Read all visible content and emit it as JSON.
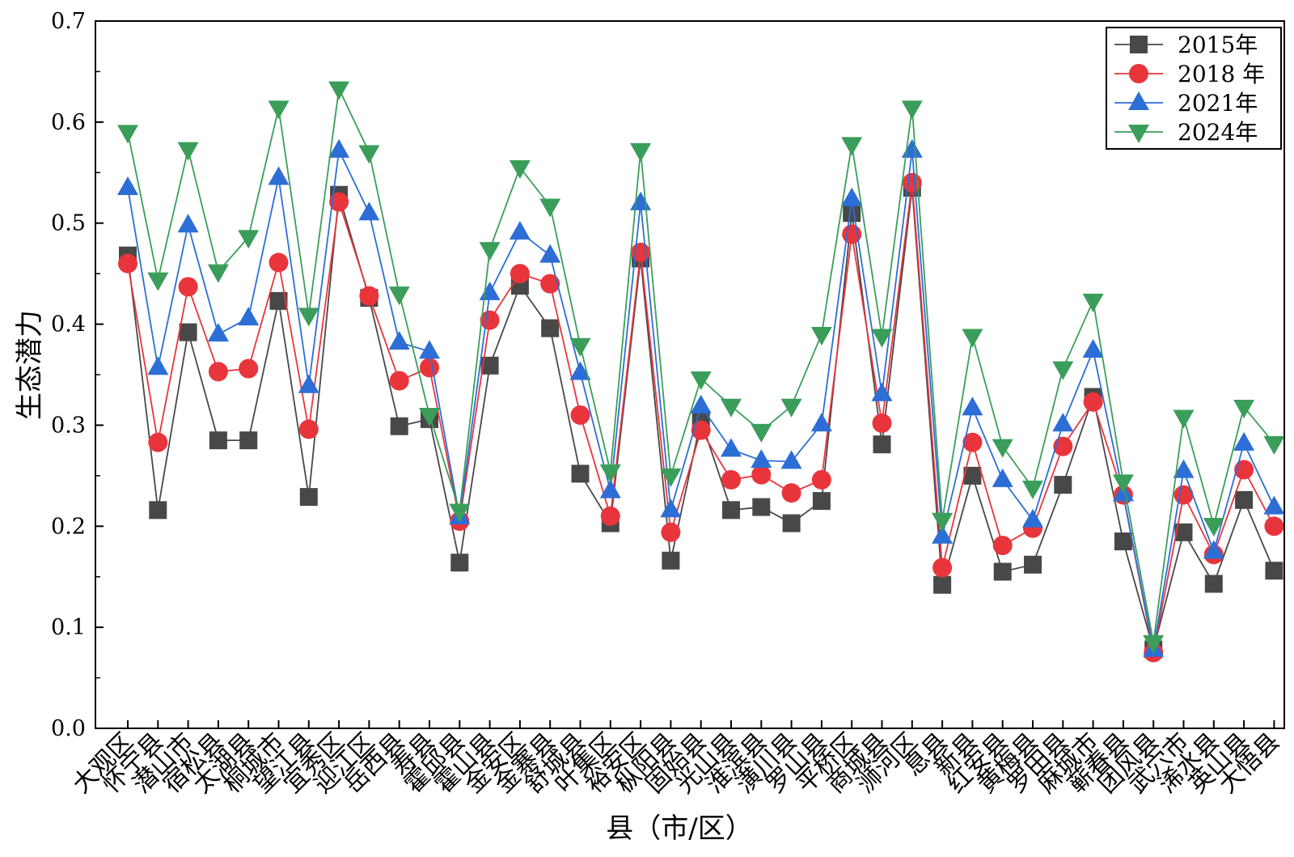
{
  "chart_data": {
    "type": "line",
    "title": "",
    "xlabel": "县（市/区）",
    "ylabel": "生态潜力",
    "ylim": [
      0,
      0.7
    ],
    "yticks": [
      "0.0",
      "0.1",
      "0.2",
      "0.3",
      "0.4",
      "0.5",
      "0.6",
      "0.7"
    ],
    "legend_position": "top-right",
    "categories": [
      "大观区",
      "怀宁县",
      "潜山市",
      "宿松县",
      "太湖县",
      "桐城市",
      "望江县",
      "宜秀区",
      "迎江区",
      "岳西县",
      "寿县",
      "霍邱县",
      "霍山县",
      "金安区",
      "金寨县",
      "舒城县",
      "叶集区",
      "裕安区",
      "枞阳县",
      "固始县",
      "光山县",
      "淮滨县",
      "潢川县",
      "罗山县",
      "平桥区",
      "商城县",
      "浉河区",
      "息县",
      "新县",
      "红安县",
      "黄梅县",
      "罗田县",
      "麻城市",
      "蕲春县",
      "团风县",
      "武穴市",
      "浠水县",
      "英山县",
      "大悟县"
    ],
    "series": [
      {
        "name": "2015年",
        "color": "#484848",
        "marker": "square",
        "values": [
          0.468,
          0.216,
          0.392,
          0.285,
          0.285,
          0.423,
          0.229,
          0.528,
          0.426,
          0.299,
          0.306,
          0.164,
          0.359,
          0.438,
          0.396,
          0.252,
          0.203,
          0.465,
          0.166,
          0.305,
          0.216,
          0.219,
          0.203,
          0.225,
          0.51,
          0.281,
          0.535,
          0.142,
          0.25,
          0.155,
          0.162,
          0.241,
          0.328,
          0.185,
          0.078,
          0.194,
          0.143,
          0.226,
          0.156
        ]
      },
      {
        "name": "2018 年",
        "color": "#e8353c",
        "marker": "circle",
        "values": [
          0.46,
          0.283,
          0.437,
          0.353,
          0.356,
          0.461,
          0.296,
          0.521,
          0.428,
          0.344,
          0.357,
          0.205,
          0.404,
          0.45,
          0.44,
          0.31,
          0.21,
          0.471,
          0.194,
          0.295,
          0.246,
          0.251,
          0.233,
          0.246,
          0.489,
          0.302,
          0.54,
          0.159,
          0.283,
          0.181,
          0.198,
          0.279,
          0.323,
          0.231,
          0.075,
          0.231,
          0.172,
          0.256,
          0.2
        ]
      },
      {
        "name": "2021年",
        "color": "#2c6ed6",
        "marker": "triangle-up",
        "values": [
          0.535,
          0.357,
          0.498,
          0.39,
          0.406,
          0.545,
          0.339,
          0.572,
          0.51,
          0.382,
          0.373,
          0.209,
          0.431,
          0.491,
          0.468,
          0.352,
          0.235,
          0.52,
          0.216,
          0.319,
          0.276,
          0.265,
          0.264,
          0.301,
          0.524,
          0.331,
          0.572,
          0.19,
          0.317,
          0.246,
          0.206,
          0.301,
          0.374,
          0.232,
          0.078,
          0.255,
          0.175,
          0.282,
          0.219
        ]
      },
      {
        "name": "2024年",
        "color": "#3a9e5a",
        "marker": "triangle-down",
        "values": [
          0.59,
          0.444,
          0.573,
          0.452,
          0.486,
          0.614,
          0.409,
          0.633,
          0.57,
          0.43,
          0.31,
          0.215,
          0.474,
          0.555,
          0.517,
          0.379,
          0.254,
          0.572,
          0.25,
          0.346,
          0.319,
          0.294,
          0.319,
          0.39,
          0.578,
          0.388,
          0.614,
          0.206,
          0.388,
          0.279,
          0.238,
          0.356,
          0.423,
          0.244,
          0.085,
          0.308,
          0.201,
          0.318,
          0.282
        ]
      }
    ]
  }
}
